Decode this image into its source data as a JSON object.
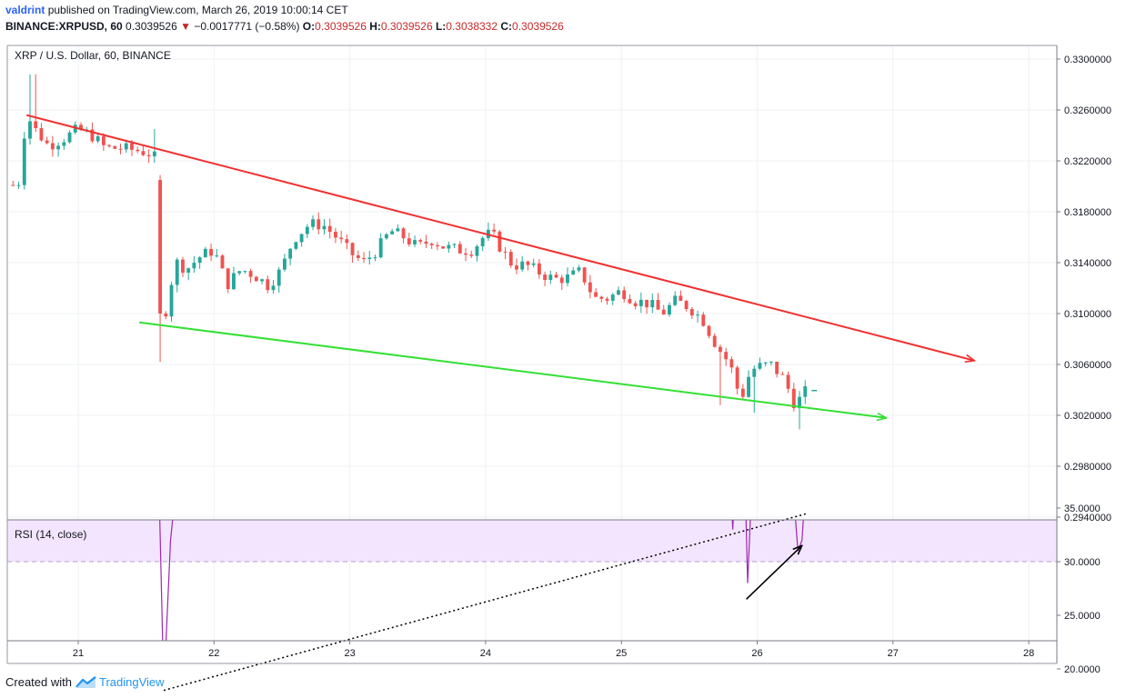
{
  "header": {
    "user": "valdrint",
    "published": "published on TradingView.com, March 26, 2019 10:00:14 CET",
    "symbol": "BINANCE:XRPUSD, 60",
    "last": "0.3039526",
    "change": "−0.0017771 (−0.58%)",
    "o_label": "O:",
    "o": "0.3039526",
    "h_label": "H:",
    "h": "0.3039526",
    "l_label": "L:",
    "l": "0.3038332",
    "c_label": "C:",
    "c": "0.3039526"
  },
  "footer": {
    "created": "Created with",
    "brand": "TradingView"
  },
  "colors": {
    "up": "#26a69a",
    "down": "#ef5350",
    "resistance": "#f23030",
    "support": "#33e033",
    "rsi": "#9c27b0",
    "rsi_band": "#f3e5fd"
  },
  "chart_data": [
    {
      "type": "candlestick",
      "title": "XRP / U.S. Dollar, 60, BINANCE",
      "x_axis": {
        "type": "date",
        "ticks": [
          "21",
          "22",
          "23",
          "24",
          "25",
          "26",
          "27",
          "28"
        ],
        "range_days": [
          20.5,
          28.2
        ]
      },
      "y_axis": {
        "position": "right",
        "range": [
          0.294,
          0.331
        ],
        "ticks": [
          "0.3300000",
          "0.3260000",
          "0.3220000",
          "0.3180000",
          "0.3140000",
          "0.3100000",
          "0.3060000",
          "0.3020000",
          "0.2980000",
          "0.2940000"
        ]
      },
      "grid": true,
      "anchors": [
        [
          20.52,
          0.3201
        ],
        [
          20.56,
          0.3202
        ],
        [
          20.62,
          0.3257
        ],
        [
          20.68,
          0.3245
        ],
        [
          20.78,
          0.3232
        ],
        [
          20.9,
          0.3238
        ],
        [
          21.0,
          0.3245
        ],
        [
          21.1,
          0.324
        ],
        [
          21.2,
          0.323
        ],
        [
          21.3,
          0.323
        ],
        [
          21.45,
          0.3228
        ],
        [
          21.55,
          0.3225
        ],
        [
          21.6,
          0.3215
        ],
        [
          21.62,
          0.312
        ],
        [
          21.66,
          0.3092
        ],
        [
          21.7,
          0.3142
        ],
        [
          21.8,
          0.3135
        ],
        [
          21.9,
          0.3145
        ],
        [
          22.0,
          0.315
        ],
        [
          22.05,
          0.3135
        ],
        [
          22.1,
          0.3123
        ],
        [
          22.2,
          0.3135
        ],
        [
          22.3,
          0.313
        ],
        [
          22.4,
          0.3122
        ],
        [
          22.5,
          0.3135
        ],
        [
          22.55,
          0.315
        ],
        [
          22.6,
          0.316
        ],
        [
          22.7,
          0.317
        ],
        [
          22.8,
          0.317
        ],
        [
          22.9,
          0.316
        ],
        [
          23.0,
          0.3148
        ],
        [
          23.1,
          0.314
        ],
        [
          23.2,
          0.315
        ],
        [
          23.3,
          0.3165
        ],
        [
          23.4,
          0.316
        ],
        [
          23.5,
          0.3152
        ],
        [
          23.6,
          0.3158
        ],
        [
          23.7,
          0.3152
        ],
        [
          23.8,
          0.315
        ],
        [
          23.9,
          0.315
        ],
        [
          24.0,
          0.3162
        ],
        [
          24.05,
          0.3162
        ],
        [
          24.12,
          0.315
        ],
        [
          24.2,
          0.3138
        ],
        [
          24.3,
          0.3138
        ],
        [
          24.4,
          0.3132
        ],
        [
          24.5,
          0.3127
        ],
        [
          24.6,
          0.3128
        ],
        [
          24.7,
          0.3133
        ],
        [
          24.8,
          0.3112
        ],
        [
          24.9,
          0.3112
        ],
        [
          25.0,
          0.3118
        ],
        [
          25.1,
          0.311
        ],
        [
          25.2,
          0.3108
        ],
        [
          25.3,
          0.31
        ],
        [
          25.4,
          0.311
        ],
        [
          25.5,
          0.3105
        ],
        [
          25.6,
          0.3095
        ],
        [
          25.7,
          0.3075
        ],
        [
          25.8,
          0.306
        ],
        [
          25.88,
          0.3032
        ],
        [
          25.95,
          0.3055
        ],
        [
          26.0,
          0.3058
        ],
        [
          26.1,
          0.306
        ],
        [
          26.2,
          0.3048
        ],
        [
          26.28,
          0.3028
        ],
        [
          26.35,
          0.3038
        ],
        [
          26.38,
          0.30395
        ]
      ],
      "resistance_line": [
        [
          20.62,
          0.3256
        ],
        [
          27.6,
          0.3063
        ]
      ],
      "support_line": [
        [
          21.45,
          0.3093
        ],
        [
          26.95,
          0.3018
        ]
      ]
    },
    {
      "type": "line",
      "title": "RSI (14, close)",
      "y_axis": {
        "position": "right",
        "range": [
          15,
          40
        ],
        "ticks": [
          "35.0000",
          "30.0000",
          "25.0000",
          "20.0000"
        ],
        "band": [
          30,
          40
        ]
      },
      "rsi_points": [
        [
          21.52,
          60
        ],
        [
          21.58,
          45
        ],
        [
          21.63,
          18
        ],
        [
          21.68,
          32
        ],
        [
          21.72,
          37
        ],
        [
          21.76,
          34
        ],
        [
          21.8,
          38
        ],
        [
          21.85,
          41
        ],
        [
          21.9,
          42
        ],
        [
          21.95,
          44
        ],
        [
          22.0,
          47
        ],
        [
          22.04,
          38
        ],
        [
          22.08,
          43
        ],
        [
          22.12,
          55
        ],
        [
          25.25,
          45
        ],
        [
          25.3,
          37
        ],
        [
          25.35,
          42
        ],
        [
          25.4,
          47
        ],
        [
          25.45,
          42
        ],
        [
          25.5,
          37
        ],
        [
          25.55,
          43
        ],
        [
          25.6,
          48
        ],
        [
          25.65,
          40
        ],
        [
          25.7,
          45
        ],
        [
          25.73,
          35
        ],
        [
          25.75,
          42
        ],
        [
          25.78,
          45
        ],
        [
          25.82,
          33
        ],
        [
          25.85,
          40
        ],
        [
          25.9,
          43
        ],
        [
          25.93,
          28
        ],
        [
          25.97,
          40
        ],
        [
          26.0,
          45
        ],
        [
          26.03,
          37
        ],
        [
          26.07,
          43
        ],
        [
          26.12,
          44
        ],
        [
          26.18,
          42
        ],
        [
          26.22,
          45
        ],
        [
          26.27,
          36
        ],
        [
          26.3,
          31
        ],
        [
          26.33,
          32
        ],
        [
          26.37,
          40
        ],
        [
          26.4,
          50
        ]
      ],
      "divergence_long": [
        [
          21.63,
          18
        ],
        [
          26.37,
          34.5
        ]
      ],
      "divergence_short": [
        [
          25.92,
          26.5
        ],
        [
          26.33,
          31.5
        ]
      ]
    }
  ]
}
